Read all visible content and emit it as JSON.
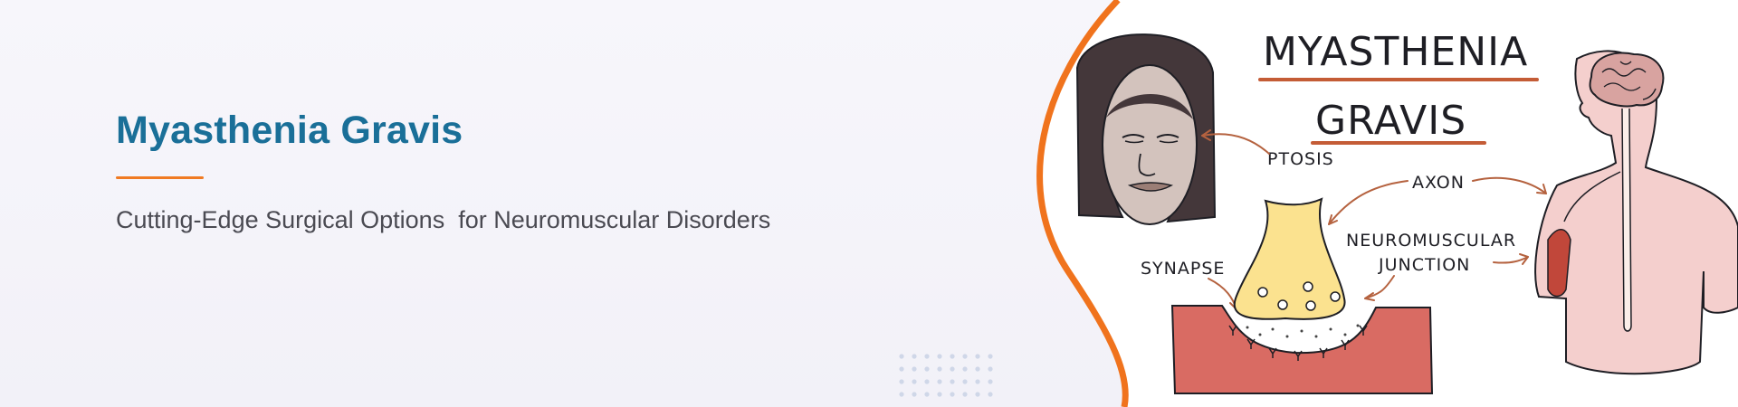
{
  "banner": {
    "title": "Myasthenia Gravis",
    "subtitle": "Cutting-Edge Surgical Options  for Neuromuscular Disorders",
    "colors": {
      "title": "#1a6f98",
      "accent": "#f07a22",
      "subtitle": "#4a4a52"
    }
  },
  "illustration": {
    "heading_line1": "MYASTHENIA",
    "heading_line2": "GRAVIS",
    "labels": {
      "ptosis": "PTOSIS",
      "axon": "AXON",
      "nmj_line1": "NEUROMUSCULAR",
      "nmj_line2": "JUNCTION",
      "synapse": "SYNAPSE"
    },
    "icons": [
      "face-drawing",
      "brain-icon",
      "body-figure",
      "nerve-terminal",
      "muscle-tissue"
    ]
  }
}
